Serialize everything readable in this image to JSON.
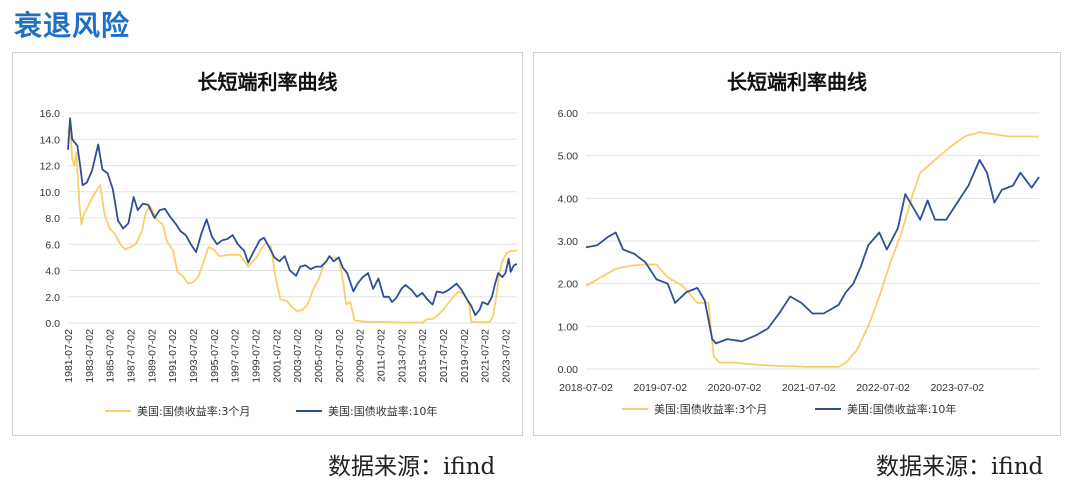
{
  "page": {
    "title": "衰退风险",
    "source_left": "数据来源：ifind",
    "source_right": "数据来源：ifind"
  },
  "colors": {
    "short": "#f7d06c",
    "long": "#2e4f96",
    "title": "#1f6fc5",
    "grid": "#e3e3e3"
  },
  "chart_data": [
    {
      "type": "line",
      "title": "长短端利率曲线",
      "xlabel": "",
      "ylabel": "",
      "ylim": [
        0,
        16
      ],
      "yticks": [
        "0.0",
        "2.0",
        "4.0",
        "6.0",
        "8.0",
        "10.0",
        "12.0",
        "14.0",
        "16.0"
      ],
      "yvalues": [
        0,
        2,
        4,
        6,
        8,
        10,
        12,
        14,
        16
      ],
      "xlim": [
        1981.5,
        2024.6
      ],
      "xticks": [
        "1981-07-02",
        "1983-07-02",
        "1985-07-02",
        "1987-07-02",
        "1989-07-02",
        "1991-07-02",
        "1993-07-02",
        "1995-07-02",
        "1997-07-02",
        "1999-07-02",
        "2001-07-02",
        "2003-07-02",
        "2005-07-02",
        "2007-07-02",
        "2009-07-02",
        "2011-07-02",
        "2013-07-02",
        "2015-07-02",
        "2017-07-02",
        "2019-07-02",
        "2021-07-02",
        "2023-07-02"
      ],
      "xtick_years": [
        1981.5,
        1983.5,
        1985.5,
        1987.5,
        1989.5,
        1991.5,
        1993.5,
        1995.5,
        1997.5,
        1999.5,
        2001.5,
        2003.5,
        2005.5,
        2007.5,
        2009.5,
        2011.5,
        2013.5,
        2015.5,
        2017.5,
        2019.5,
        2021.5,
        2023.5
      ],
      "grid": true,
      "legend": "bottom",
      "series": [
        {
          "name": "美国:国债收益率:3个月",
          "key": "short",
          "x": [
            1981.5,
            1981.7,
            1981.9,
            1982.1,
            1982.3,
            1982.6,
            1982.8,
            1983.0,
            1983.5,
            1984.0,
            1984.6,
            1985.0,
            1985.5,
            1986.0,
            1986.6,
            1987.0,
            1987.5,
            1988.0,
            1988.6,
            1989.0,
            1989.4,
            1990.0,
            1990.6,
            1991.0,
            1991.6,
            1992.0,
            1992.5,
            1993.0,
            1993.5,
            1994.0,
            1994.5,
            1995.0,
            1995.5,
            1996.0,
            1997.0,
            1998.0,
            1998.8,
            1999.0,
            1999.6,
            2000.0,
            2000.5,
            2001.0,
            2001.4,
            2001.9,
            2002.5,
            2003.0,
            2003.5,
            2004.0,
            2004.5,
            2005.0,
            2005.6,
            2006.0,
            2006.5,
            2007.0,
            2007.5,
            2007.9,
            2008.2,
            2008.6,
            2009.0,
            2010.0,
            2012.0,
            2014.0,
            2015.5,
            2016.0,
            2016.5,
            2017.0,
            2017.5,
            2018.0,
            2018.6,
            2019.0,
            2019.5,
            2020.0,
            2020.2,
            2021.0,
            2021.5,
            2022.0,
            2022.3,
            2022.6,
            2022.9,
            2023.2,
            2023.6,
            2024.0,
            2024.6
          ],
          "y": [
            14.5,
            15.2,
            12.5,
            12.0,
            13.0,
            9.0,
            7.5,
            8.2,
            9.0,
            9.8,
            10.5,
            8.3,
            7.2,
            6.8,
            5.9,
            5.6,
            5.8,
            6.0,
            7.0,
            8.5,
            8.9,
            7.9,
            7.5,
            6.2,
            5.5,
            3.9,
            3.6,
            3.0,
            3.1,
            3.5,
            4.6,
            5.8,
            5.6,
            5.1,
            5.2,
            5.2,
            4.3,
            4.5,
            5.0,
            5.6,
            6.1,
            5.8,
            3.6,
            1.8,
            1.7,
            1.2,
            0.9,
            1.0,
            1.4,
            2.5,
            3.4,
            4.3,
            5.0,
            5.0,
            4.9,
            3.2,
            1.4,
            1.6,
            0.2,
            0.1,
            0.08,
            0.03,
            0.02,
            0.3,
            0.3,
            0.6,
            1.0,
            1.5,
            2.1,
            2.4,
            2.2,
            1.5,
            0.1,
            0.05,
            0.05,
            0.1,
            0.5,
            2.0,
            3.8,
            4.7,
            5.3,
            5.5,
            5.5
          ]
        },
        {
          "name": "美国:国债收益率:10年",
          "key": "long",
          "x": [
            1981.5,
            1981.7,
            1981.9,
            1982.1,
            1982.4,
            1982.7,
            1982.9,
            1983.3,
            1983.8,
            1984.4,
            1984.8,
            1985.3,
            1985.8,
            1986.3,
            1986.8,
            1987.3,
            1987.8,
            1988.2,
            1988.7,
            1989.2,
            1989.8,
            1990.3,
            1990.8,
            1991.3,
            1991.8,
            1992.3,
            1992.8,
            1993.3,
            1993.8,
            1994.3,
            1994.8,
            1995.3,
            1995.8,
            1996.3,
            1996.8,
            1997.3,
            1997.8,
            1998.4,
            1998.8,
            1999.3,
            1999.9,
            2000.3,
            2000.8,
            2001.3,
            2001.8,
            2002.3,
            2002.8,
            2003.4,
            2003.8,
            2004.3,
            2004.8,
            2005.3,
            2005.8,
            2006.3,
            2006.6,
            2007.0,
            2007.5,
            2007.9,
            2008.3,
            2008.9,
            2009.3,
            2009.8,
            2010.3,
            2010.8,
            2011.3,
            2011.8,
            2012.3,
            2012.6,
            2013.0,
            2013.5,
            2013.9,
            2014.5,
            2015.0,
            2015.5,
            2016.0,
            2016.5,
            2016.9,
            2017.5,
            2018.0,
            2018.8,
            2019.3,
            2019.8,
            2020.2,
            2020.6,
            2021.0,
            2021.3,
            2021.8,
            2022.2,
            2022.5,
            2022.8,
            2023.2,
            2023.5,
            2023.8,
            2024.0,
            2024.3,
            2024.6
          ],
          "y": [
            13.2,
            15.6,
            14.0,
            13.8,
            13.5,
            11.8,
            10.5,
            10.7,
            11.6,
            13.6,
            11.7,
            11.4,
            10.2,
            7.8,
            7.2,
            7.6,
            9.6,
            8.6,
            9.1,
            9.0,
            8.0,
            8.6,
            8.7,
            8.1,
            7.6,
            7.0,
            6.7,
            6.0,
            5.4,
            6.8,
            7.9,
            6.6,
            6.0,
            6.3,
            6.4,
            6.7,
            6.0,
            5.5,
            4.6,
            5.4,
            6.3,
            6.5,
            5.8,
            5.0,
            4.7,
            5.1,
            4.0,
            3.6,
            4.3,
            4.4,
            4.1,
            4.3,
            4.3,
            4.7,
            5.1,
            4.7,
            5.0,
            4.2,
            3.8,
            2.4,
            3.0,
            3.5,
            3.8,
            2.6,
            3.4,
            2.0,
            2.0,
            1.6,
            1.9,
            2.6,
            2.9,
            2.5,
            2.0,
            2.3,
            1.8,
            1.4,
            2.4,
            2.3,
            2.5,
            3.0,
            2.5,
            1.8,
            1.3,
            0.6,
            1.0,
            1.6,
            1.4,
            2.0,
            3.0,
            3.8,
            3.5,
            3.8,
            4.9,
            3.9,
            4.4,
            4.5
          ]
        }
      ]
    },
    {
      "type": "line",
      "title": "长短端利率曲线",
      "xlabel": "",
      "ylabel": "",
      "ylim": [
        0,
        6
      ],
      "yticks": [
        "0.00",
        "1.00",
        "2.00",
        "3.00",
        "4.00",
        "5.00",
        "6.00"
      ],
      "yvalues": [
        0,
        1,
        2,
        3,
        4,
        5,
        6
      ],
      "xlim": [
        2018.5,
        2024.6
      ],
      "xticks": [
        "2018-07-02",
        "2019-07-02",
        "2020-07-02",
        "2021-07-02",
        "2022-07-02",
        "2023-07-02"
      ],
      "xtick_years": [
        2018.5,
        2019.5,
        2020.5,
        2021.5,
        2022.5,
        2023.5
      ],
      "grid": true,
      "legend": "bottom",
      "series": [
        {
          "name": "美国:国债收益率:3个月",
          "key": "short",
          "x": [
            2018.5,
            2018.7,
            2018.9,
            2019.1,
            2019.3,
            2019.45,
            2019.6,
            2019.8,
            2020.0,
            2020.15,
            2020.22,
            2020.3,
            2020.5,
            2020.8,
            2021.0,
            2021.5,
            2021.9,
            2022.0,
            2022.15,
            2022.3,
            2022.45,
            2022.6,
            2022.75,
            2022.9,
            2023.0,
            2023.2,
            2023.4,
            2023.6,
            2023.8,
            2024.0,
            2024.2,
            2024.4,
            2024.6
          ],
          "y": [
            1.95,
            2.15,
            2.35,
            2.42,
            2.45,
            2.45,
            2.15,
            1.95,
            1.55,
            1.55,
            0.3,
            0.15,
            0.15,
            0.1,
            0.08,
            0.05,
            0.05,
            0.15,
            0.45,
            1.0,
            1.7,
            2.5,
            3.2,
            4.1,
            4.6,
            4.9,
            5.2,
            5.45,
            5.55,
            5.5,
            5.45,
            5.45,
            5.45
          ]
        },
        {
          "name": "美国:国债收益率:10年",
          "key": "long",
          "x": [
            2018.5,
            2018.65,
            2018.8,
            2018.9,
            2019.0,
            2019.15,
            2019.3,
            2019.45,
            2019.6,
            2019.7,
            2019.85,
            2020.0,
            2020.1,
            2020.2,
            2020.25,
            2020.4,
            2020.6,
            2020.8,
            2020.95,
            2021.1,
            2021.25,
            2021.4,
            2021.55,
            2021.7,
            2021.9,
            2022.0,
            2022.1,
            2022.2,
            2022.3,
            2022.45,
            2022.55,
            2022.7,
            2022.8,
            2022.9,
            2023.0,
            2023.1,
            2023.2,
            2023.35,
            2023.5,
            2023.65,
            2023.8,
            2023.9,
            2024.0,
            2024.1,
            2024.25,
            2024.35,
            2024.5,
            2024.6
          ],
          "y": [
            2.85,
            2.9,
            3.1,
            3.2,
            2.8,
            2.7,
            2.5,
            2.1,
            2.0,
            1.55,
            1.8,
            1.9,
            1.6,
            0.7,
            0.6,
            0.7,
            0.65,
            0.8,
            0.95,
            1.3,
            1.7,
            1.55,
            1.3,
            1.3,
            1.5,
            1.8,
            2.0,
            2.4,
            2.9,
            3.2,
            2.8,
            3.3,
            4.1,
            3.8,
            3.5,
            3.95,
            3.5,
            3.5,
            3.9,
            4.3,
            4.9,
            4.6,
            3.9,
            4.2,
            4.3,
            4.6,
            4.25,
            4.5
          ]
        }
      ]
    }
  ]
}
